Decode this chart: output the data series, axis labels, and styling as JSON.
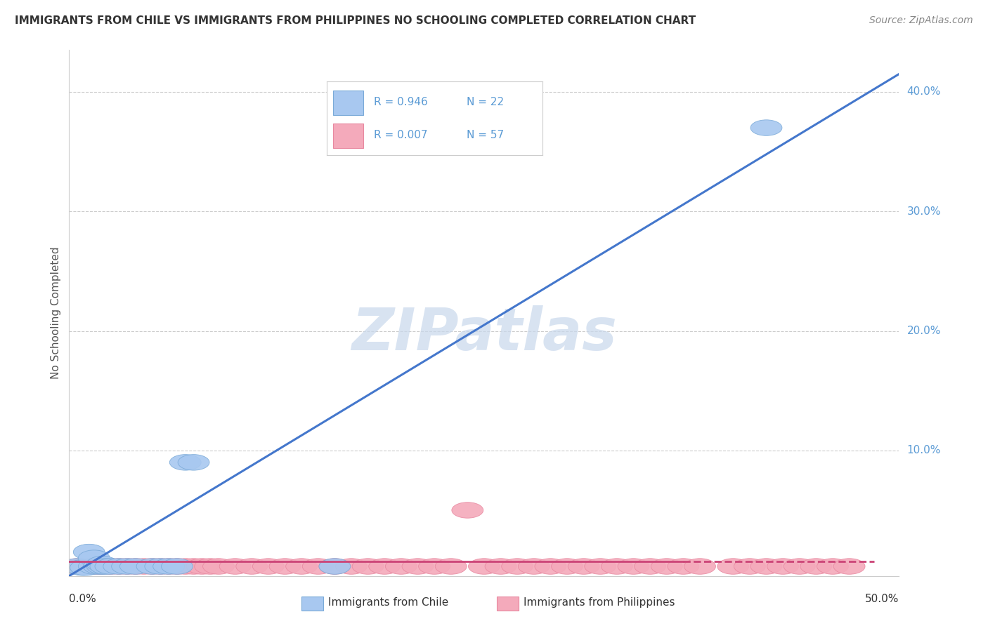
{
  "title": "IMMIGRANTS FROM CHILE VS IMMIGRANTS FROM PHILIPPINES NO SCHOOLING COMPLETED CORRELATION CHART",
  "source": "Source: ZipAtlas.com",
  "ylabel": "No Schooling Completed",
  "xlim": [
    0.0,
    0.5
  ],
  "ylim": [
    -0.005,
    0.435
  ],
  "chile_color": "#A8C8F0",
  "philippines_color": "#F4AABB",
  "chile_edge_color": "#7AAAD8",
  "philippines_edge_color": "#E888A0",
  "chile_line_color": "#4477CC",
  "philippines_line_color": "#CC4477",
  "watermark_color": "#C8D8EC",
  "grid_color": "#CCCCCC",
  "title_color": "#333333",
  "source_color": "#888888",
  "ylabel_color": "#555555",
  "tick_label_color": "#5B9BD5",
  "axis_color": "#CCCCCC",
  "background_color": "#FFFFFF",
  "chile_scatter_x": [
    0.005,
    0.008,
    0.01,
    0.012,
    0.015,
    0.015,
    0.018,
    0.02,
    0.02,
    0.022,
    0.025,
    0.03,
    0.035,
    0.04,
    0.05,
    0.055,
    0.06,
    0.065,
    0.07,
    0.075,
    0.16,
    0.42
  ],
  "chile_scatter_y": [
    0.003,
    0.002,
    0.002,
    0.015,
    0.003,
    0.01,
    0.003,
    0.003,
    0.005,
    0.003,
    0.003,
    0.003,
    0.003,
    0.003,
    0.003,
    0.003,
    0.003,
    0.003,
    0.09,
    0.09,
    0.003,
    0.37
  ],
  "philippines_scatter_x": [
    0.005,
    0.008,
    0.01,
    0.015,
    0.018,
    0.02,
    0.025,
    0.03,
    0.035,
    0.04,
    0.045,
    0.05,
    0.055,
    0.06,
    0.065,
    0.07,
    0.075,
    0.08,
    0.085,
    0.09,
    0.1,
    0.11,
    0.12,
    0.13,
    0.14,
    0.15,
    0.16,
    0.17,
    0.18,
    0.19,
    0.2,
    0.21,
    0.22,
    0.23,
    0.24,
    0.25,
    0.26,
    0.27,
    0.28,
    0.29,
    0.3,
    0.31,
    0.32,
    0.33,
    0.34,
    0.35,
    0.36,
    0.37,
    0.38,
    0.4,
    0.41,
    0.42,
    0.43,
    0.44,
    0.45,
    0.46,
    0.47
  ],
  "philippines_scatter_y": [
    0.003,
    0.003,
    0.003,
    0.003,
    0.003,
    0.003,
    0.003,
    0.003,
    0.003,
    0.003,
    0.003,
    0.003,
    0.003,
    0.003,
    0.003,
    0.003,
    0.003,
    0.003,
    0.003,
    0.003,
    0.003,
    0.003,
    0.003,
    0.003,
    0.003,
    0.003,
    0.003,
    0.003,
    0.003,
    0.003,
    0.003,
    0.003,
    0.003,
    0.003,
    0.05,
    0.003,
    0.003,
    0.003,
    0.003,
    0.003,
    0.003,
    0.003,
    0.003,
    0.003,
    0.003,
    0.003,
    0.003,
    0.003,
    0.003,
    0.003,
    0.003,
    0.003,
    0.003,
    0.003,
    0.003,
    0.003,
    0.003
  ],
  "chile_line_x": [
    0.0,
    0.5
  ],
  "chile_line_y": [
    -0.005,
    0.415
  ],
  "phil_line_x": [
    0.0,
    0.485
  ],
  "phil_line_y": [
    0.007,
    0.007
  ],
  "ytick_vals": [
    0.1,
    0.2,
    0.3,
    0.4
  ],
  "ytick_labels": [
    "10.0%",
    "20.0%",
    "30.0%",
    "40.0%"
  ],
  "legend_r1": "R = 0.946",
  "legend_n1": "N = 22",
  "legend_r2": "R = 0.007",
  "legend_n2": "N = 57",
  "bottom_label1": "Immigrants from Chile",
  "bottom_label2": "Immigrants from Philippines"
}
